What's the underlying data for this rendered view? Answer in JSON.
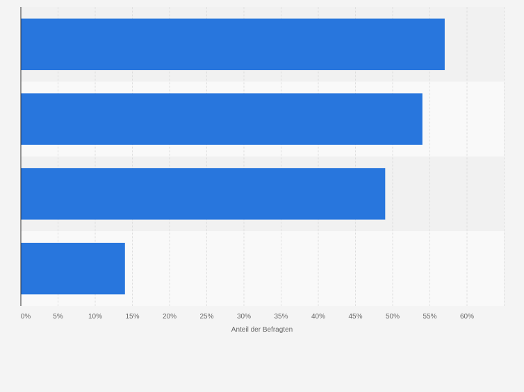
{
  "chart_data": {
    "type": "bar",
    "orientation": "horizontal",
    "categories": [
      "",
      "",
      "",
      ""
    ],
    "values": [
      57,
      54,
      49,
      14
    ],
    "unit": "%",
    "title": "",
    "xlabel": "Anteil der Befragten",
    "ylabel": "",
    "xlim": [
      0,
      65
    ],
    "x_ticks": [
      "0%",
      "5%",
      "10%",
      "15%",
      "20%",
      "25%",
      "30%",
      "35%",
      "40%",
      "45%",
      "50%",
      "55%",
      "60%"
    ],
    "grid": true,
    "legend": "none",
    "colors": {
      "bar": "#2876dd",
      "background": "#f4f4f4",
      "band_dark": "#f1f1f1",
      "band_light": "#f9f9f9",
      "gridline": "#dcdcdc",
      "axis": "#333333",
      "text": "#666666"
    }
  }
}
